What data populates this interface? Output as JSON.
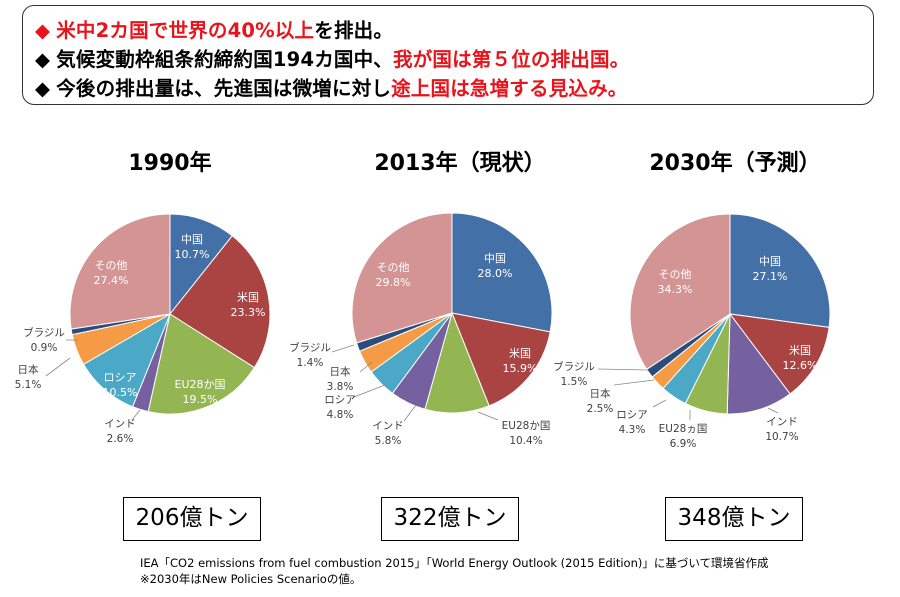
{
  "header": {
    "line1_red": "米中2カ国で世界の40%以上",
    "line1_rest": "を排出。",
    "line2_black": "気候変動枠組条約締約国194カ国中、",
    "line2_red": "我が国は第５位の排出国。",
    "line3_black": "今後の排出量は、先進国は微増に対し",
    "line3_red": "途上国は急増する見込み。",
    "bullet": "◆"
  },
  "colors": {
    "中国": "#4470a8",
    "米国": "#a94442",
    "EU28か国": "#93b653",
    "インド": "#7560a0",
    "ロシア": "#4ba8c6",
    "日本": "#f59b45",
    "ブラジル": "#2b4c7e",
    "その他": "#d49493"
  },
  "chart_data": [
    {
      "type": "pie",
      "title": "1990年",
      "total": "206億トン",
      "slices": [
        {
          "name": "中国",
          "label": "中国",
          "value": 10.7,
          "pct": "10.7%"
        },
        {
          "name": "米国",
          "label": "米国",
          "value": 23.3,
          "pct": "23.3%"
        },
        {
          "name": "EU28か国",
          "label": "EU28か国",
          "value": 19.5,
          "pct": "19.5%"
        },
        {
          "name": "インド",
          "label": "インド",
          "value": 2.6,
          "pct": "2.6%"
        },
        {
          "name": "ロシア",
          "label": "ロシア",
          "value": 10.5,
          "pct": "10.5%"
        },
        {
          "name": "日本",
          "label": "日本",
          "value": 5.1,
          "pct": "5.1%"
        },
        {
          "name": "ブラジル",
          "label": "ブラジル",
          "value": 0.9,
          "pct": "0.9%"
        },
        {
          "name": "その他",
          "label": "その他",
          "value": 27.4,
          "pct": "27.4%"
        }
      ]
    },
    {
      "type": "pie",
      "title": "2013年（現状）",
      "total": "322億トン",
      "slices": [
        {
          "name": "中国",
          "label": "中国",
          "value": 28.0,
          "pct": "28.0%"
        },
        {
          "name": "米国",
          "label": "米国",
          "value": 15.9,
          "pct": "15.9%"
        },
        {
          "name": "EU28か国",
          "label": "EU28か国",
          "value": 10.4,
          "pct": "10.4%"
        },
        {
          "name": "インド",
          "label": "インド",
          "value": 5.8,
          "pct": "5.8%"
        },
        {
          "name": "ロシア",
          "label": "ロシア",
          "value": 4.8,
          "pct": "4.8%"
        },
        {
          "name": "日本",
          "label": "日本",
          "value": 3.8,
          "pct": "3.8%"
        },
        {
          "name": "ブラジル",
          "label": "ブラジル",
          "value": 1.4,
          "pct": "1.4%"
        },
        {
          "name": "その他",
          "label": "その他",
          "value": 29.8,
          "pct": "29.8%"
        }
      ]
    },
    {
      "type": "pie",
      "title": "2030年（予測）",
      "total": "348億トン",
      "slices": [
        {
          "name": "中国",
          "label": "中国",
          "value": 27.1,
          "pct": "27.1%"
        },
        {
          "name": "米国",
          "label": "米国",
          "value": 12.6,
          "pct": "12.6%"
        },
        {
          "name": "インド",
          "label": "インド",
          "value": 10.7,
          "pct": "10.7%"
        },
        {
          "name": "EU28か国",
          "label": "EU28ヵ国",
          "value": 6.9,
          "pct": "6.9%"
        },
        {
          "name": "ロシア",
          "label": "ロシア",
          "value": 4.3,
          "pct": "4.3%"
        },
        {
          "name": "日本",
          "label": "日本",
          "value": 2.5,
          "pct": "2.5%"
        },
        {
          "name": "ブラジル",
          "label": "ブラジル",
          "value": 1.5,
          "pct": "1.5%"
        },
        {
          "name": "その他",
          "label": "その他",
          "value": 34.3,
          "pct": "34.3%"
        }
      ]
    }
  ],
  "source": {
    "line1": "IEA「CO2 emissions from fuel combustion 2015」「World Energy Outlook (2015 Edition)」に基づいて環境省作成",
    "line2": "※2030年はNew Policies Scenarioの値。"
  }
}
